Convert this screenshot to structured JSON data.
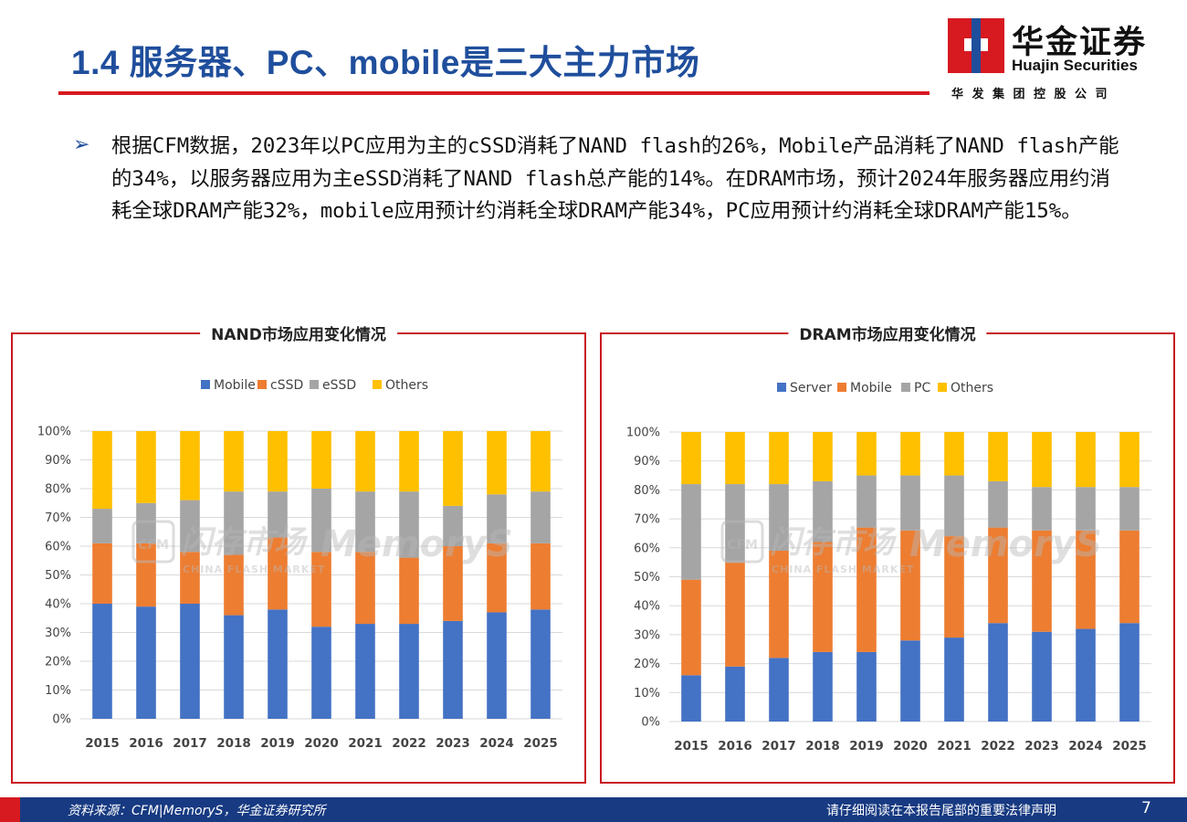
{
  "header": {
    "title": "1.4 服务器、PC、mobile是三大主力市场"
  },
  "logo": {
    "name_cn": "华金证券",
    "name_en": "Huajin Securities",
    "subtitle": "华发集团控股公司",
    "colors": {
      "red": "#d71920",
      "blue": "#1f4e9c"
    }
  },
  "body": {
    "bullet_icon": "arrow-bullet-icon",
    "bullet_text": "根据CFM数据，2023年以PC应用为主的cSSD消耗了NAND flash的26%，Mobile产品消耗了NAND flash产能的34%，以服务器应用为主eSSD消耗了NAND flash总产能的14%。在DRAM市场，预计2024年服务器应用约消耗全球DRAM产能32%，mobile应用预计约消耗全球DRAM产能34%，PC应用预计约消耗全球DRAM产能15%。"
  },
  "watermark": {
    "brand_cn": "闪存市场",
    "brand_logo": "CFM",
    "brand_en": "CHINA FLASH MARKET",
    "brand2": "MemoryS"
  },
  "chart_data": [
    {
      "type": "bar",
      "stacked": true,
      "percent": true,
      "title": "NAND市场应用变化情况",
      "categories": [
        "2015",
        "2016",
        "2017",
        "2018",
        "2019",
        "2020",
        "2021",
        "2022",
        "2023",
        "2024",
        "2025"
      ],
      "y_ticks": [
        "0%",
        "10%",
        "20%",
        "30%",
        "40%",
        "50%",
        "60%",
        "70%",
        "80%",
        "90%",
        "100%"
      ],
      "ylim": [
        0,
        100
      ],
      "grid": true,
      "legend_position": "top",
      "series": [
        {
          "name": "Mobile",
          "color": "#4472c4",
          "values": [
            40,
            39,
            40,
            36,
            38,
            32,
            33,
            33,
            34,
            37,
            38
          ]
        },
        {
          "name": "cSSD",
          "color": "#ed7d31",
          "values": [
            21,
            22,
            18,
            21,
            25,
            26,
            25,
            23,
            26,
            24,
            23
          ]
        },
        {
          "name": "eSSD",
          "color": "#a5a5a5",
          "values": [
            12,
            14,
            18,
            22,
            16,
            22,
            21,
            23,
            14,
            17,
            18
          ]
        },
        {
          "name": "Others",
          "color": "#ffc000",
          "values": [
            27,
            25,
            24,
            21,
            21,
            20,
            21,
            21,
            26,
            22,
            21
          ]
        }
      ]
    },
    {
      "type": "bar",
      "stacked": true,
      "percent": true,
      "title": "DRAM市场应用变化情况",
      "categories": [
        "2015",
        "2016",
        "2017",
        "2018",
        "2019",
        "2020",
        "2021",
        "2022",
        "2023",
        "2024",
        "2025"
      ],
      "y_ticks": [
        "0%",
        "10%",
        "20%",
        "30%",
        "40%",
        "50%",
        "60%",
        "70%",
        "80%",
        "90%",
        "100%"
      ],
      "ylim": [
        0,
        100
      ],
      "grid": true,
      "legend_position": "top",
      "series": [
        {
          "name": "Server",
          "color": "#4472c4",
          "values": [
            16,
            19,
            22,
            24,
            24,
            28,
            29,
            34,
            31,
            32,
            34
          ]
        },
        {
          "name": "Mobile",
          "color": "#ed7d31",
          "values": [
            33,
            36,
            37,
            38,
            43,
            38,
            35,
            33,
            35,
            34,
            32
          ]
        },
        {
          "name": "PC",
          "color": "#a5a5a5",
          "values": [
            33,
            27,
            23,
            21,
            18,
            19,
            21,
            16,
            15,
            15,
            15
          ]
        },
        {
          "name": "Others",
          "color": "#ffc000",
          "values": [
            18,
            18,
            18,
            17,
            15,
            15,
            15,
            17,
            19,
            19,
            19
          ]
        }
      ]
    }
  ],
  "footer": {
    "source": "资料来源：CFM|MemoryS，华金证券研究所",
    "notice": "请仔细阅读在本报告尾部的重要法律声明",
    "page": "7"
  }
}
